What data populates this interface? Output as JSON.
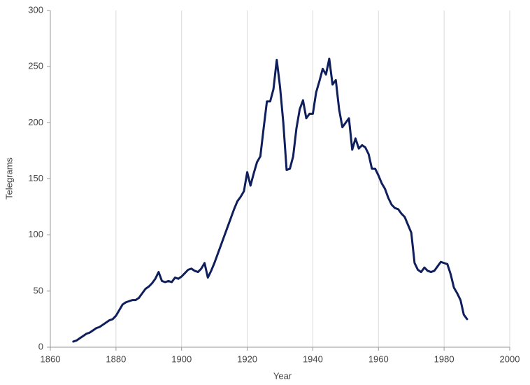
{
  "chart_data": {
    "type": "line",
    "x_label": "Year",
    "y_label": "Telegrams",
    "x": [
      1867,
      1868,
      1869,
      1870,
      1871,
      1872,
      1873,
      1874,
      1875,
      1876,
      1877,
      1878,
      1879,
      1880,
      1881,
      1882,
      1883,
      1884,
      1885,
      1886,
      1887,
      1888,
      1889,
      1890,
      1891,
      1892,
      1893,
      1894,
      1895,
      1896,
      1897,
      1898,
      1899,
      1900,
      1901,
      1902,
      1903,
      1904,
      1905,
      1906,
      1907,
      1908,
      1909,
      1910,
      1911,
      1912,
      1913,
      1914,
      1915,
      1916,
      1917,
      1918,
      1919,
      1920,
      1921,
      1922,
      1923,
      1924,
      1925,
      1926,
      1927,
      1928,
      1929,
      1930,
      1931,
      1932,
      1933,
      1934,
      1935,
      1936,
      1937,
      1938,
      1939,
      1940,
      1941,
      1942,
      1943,
      1944,
      1945,
      1946,
      1947,
      1948,
      1949,
      1950,
      1951,
      1952,
      1953,
      1954,
      1955,
      1956,
      1957,
      1958,
      1959,
      1960,
      1961,
      1962,
      1963,
      1964,
      1965,
      1966,
      1967,
      1968,
      1969,
      1970,
      1971,
      1972,
      1973,
      1974,
      1975,
      1976,
      1977,
      1978,
      1979,
      1980,
      1981,
      1982,
      1983,
      1984,
      1985,
      1986,
      1987
    ],
    "values": [
      5,
      6,
      8,
      10,
      12,
      13,
      15,
      17,
      18,
      20,
      22,
      24,
      25,
      28,
      33,
      38,
      40,
      41,
      42,
      42,
      44,
      48,
      52,
      54,
      57,
      61,
      67,
      59,
      58,
      59,
      58,
      62,
      61,
      63,
      66,
      69,
      70,
      68,
      67,
      70,
      75,
      62,
      68,
      75,
      83,
      91,
      99,
      107,
      115,
      123,
      130,
      134,
      139,
      156,
      144,
      155,
      165,
      170,
      195,
      219,
      219,
      230,
      256,
      232,
      200,
      158,
      159,
      170,
      195,
      212,
      220,
      204,
      208,
      208,
      227,
      237,
      248,
      243,
      257,
      234,
      238,
      212,
      196,
      200,
      204,
      176,
      186,
      177,
      180,
      178,
      172,
      159,
      159,
      153,
      146,
      141,
      133,
      127,
      124,
      123,
      119,
      116,
      109,
      102,
      75,
      69,
      67,
      71,
      68,
      67,
      68,
      72,
      76,
      75,
      74,
      65,
      53,
      48,
      42,
      29,
      25
    ],
    "color": "#0f1f5c",
    "xlim": [
      1860,
      2000
    ],
    "xticks": [
      1860,
      1880,
      1900,
      1920,
      1940,
      1960,
      1980,
      2000
    ],
    "ylim": [
      0,
      300
    ],
    "yticks": [
      0,
      50,
      100,
      150,
      200,
      250,
      300
    ],
    "grid": "x"
  }
}
